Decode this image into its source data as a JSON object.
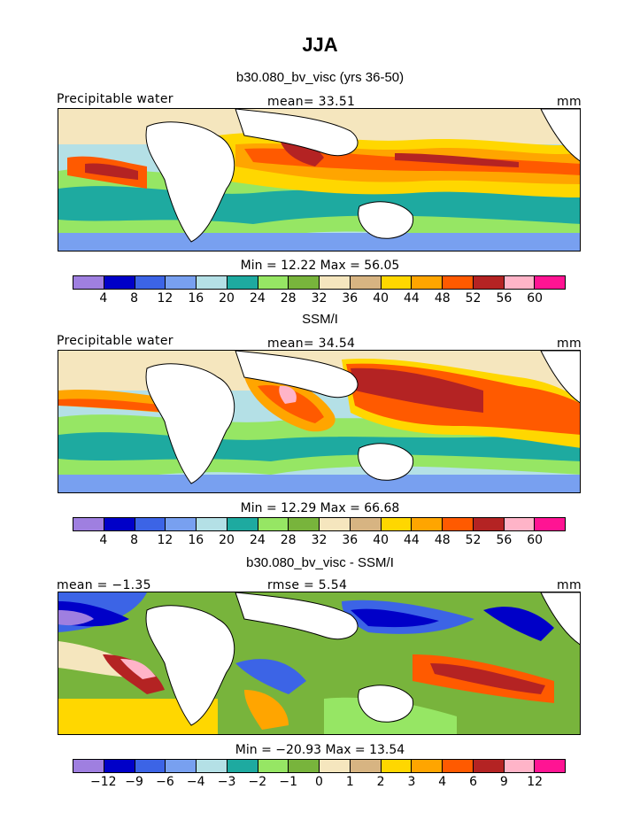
{
  "figure": {
    "season": "JJA",
    "model_title": "b30.080_bv_visc (yrs 36-50)",
    "obs_title": "SSM/I",
    "diff_title": "b30.080_bv_visc - SSM/I"
  },
  "panels": [
    {
      "id": "model",
      "left_label": "Precipitable water",
      "center_label": "mean=   33.51",
      "right_label": "mm",
      "minmax": "Min =   12.22  Max =   56.05"
    },
    {
      "id": "obs",
      "left_label": "Precipitable water",
      "center_label": "mean=   34.54",
      "right_label": "mm",
      "minmax": "Min =   12.29  Max =   66.68"
    },
    {
      "id": "diff",
      "left_label": "mean =   −1.35",
      "center_label": "rmse =     5.54",
      "right_label": "mm",
      "minmax": "Min = −20.93  Max =   13.54"
    }
  ],
  "colorbars": {
    "absolute": {
      "colors": [
        "#9f7fe0",
        "#0000c8",
        "#3c64e6",
        "#78a0f0",
        "#b4e0e6",
        "#1eaaa0",
        "#96e664",
        "#78b43c",
        "#f5e6be",
        "#d7b482",
        "#ffd700",
        "#ffa500",
        "#ff5a00",
        "#b42323",
        "#ffb4c8",
        "#ff1493"
      ],
      "ticks": [
        "4",
        "8",
        "12",
        "16",
        "20",
        "24",
        "28",
        "32",
        "36",
        "40",
        "44",
        "48",
        "52",
        "56",
        "60"
      ]
    },
    "difference": {
      "colors": [
        "#9f7fe0",
        "#0000c8",
        "#3c64e6",
        "#78a0f0",
        "#b4e0e6",
        "#1eaaa0",
        "#96e664",
        "#78b43c",
        "#f5e6be",
        "#d7b482",
        "#ffd700",
        "#ffa500",
        "#ff5a00",
        "#b42323",
        "#ffb4c8",
        "#ff1493"
      ],
      "ticks": [
        "−12",
        "−9",
        "−6",
        "−4",
        "−3",
        "−2",
        "−1",
        "0",
        "1",
        "2",
        "3",
        "4",
        "6",
        "9",
        "12"
      ]
    }
  }
}
